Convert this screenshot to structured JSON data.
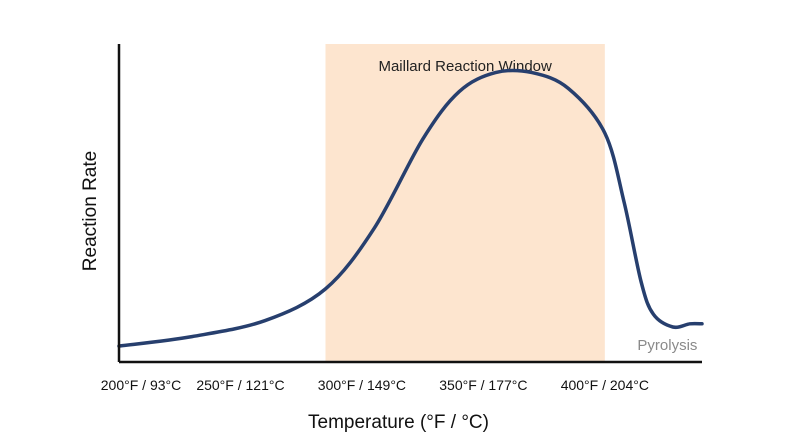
{
  "chart_data": {
    "type": "line",
    "title": "",
    "xlabel": "Temperature (°F / °C)",
    "ylabel": "Reaction Rate",
    "xlim": [
      200,
      440
    ],
    "ylim": [
      0,
      1
    ],
    "x_ticks": [
      {
        "value": 200,
        "label": "200°F / 93°C"
      },
      {
        "value": 250,
        "label": "250°F / 121°C"
      },
      {
        "value": 300,
        "label": "300°F / 149°C"
      },
      {
        "value": 350,
        "label": "350°F / 177°C"
      },
      {
        "value": 400,
        "label": "400°F / 204°C"
      }
    ],
    "shaded_region": {
      "label": "Maillard Reaction Window",
      "x_start": 285,
      "x_end": 400,
      "color": "#fde5cf"
    },
    "annotation": {
      "label": "Pyrolysis",
      "x": 420,
      "y": 0.06,
      "color": "#8a8a8a"
    },
    "line_color": "#273f6e",
    "series": [
      {
        "x": [
          200,
          230,
          260,
          285,
          305,
          325,
          340,
          355,
          370,
          385,
          400,
          408,
          415,
          420,
          428,
          435,
          440
        ],
        "y": [
          0.05,
          0.08,
          0.13,
          0.23,
          0.42,
          0.7,
          0.85,
          0.91,
          0.91,
          0.86,
          0.72,
          0.5,
          0.25,
          0.15,
          0.11,
          0.12,
          0.12
        ]
      }
    ],
    "grid": false,
    "legend": "none"
  }
}
